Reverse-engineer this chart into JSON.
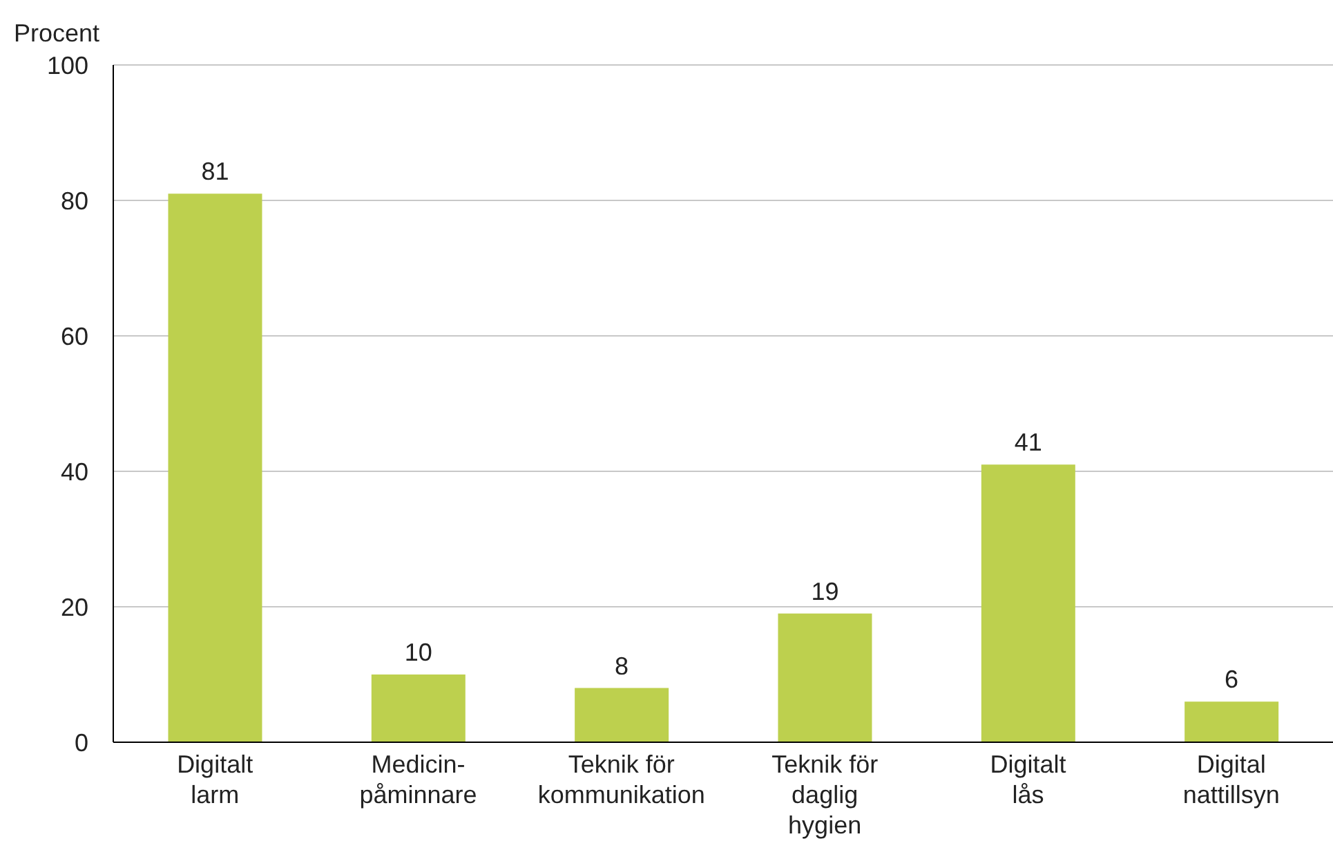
{
  "chart_data": {
    "type": "bar",
    "ylabel": "Procent",
    "categories": [
      "Digitalt\nlarm",
      "Medicin-\npåminnare",
      "Teknik för\nkommunikation",
      "Teknik för\ndaglig\nhygien",
      "Digitalt\nlås",
      "Digital\nnattillsyn"
    ],
    "values": [
      81,
      10,
      8,
      19,
      41,
      6
    ],
    "color": "#bdd04e",
    "ylim": [
      0,
      100
    ],
    "yticks": [
      0,
      20,
      40,
      60,
      80,
      100
    ],
    "grid": "y",
    "data_labels": true
  }
}
